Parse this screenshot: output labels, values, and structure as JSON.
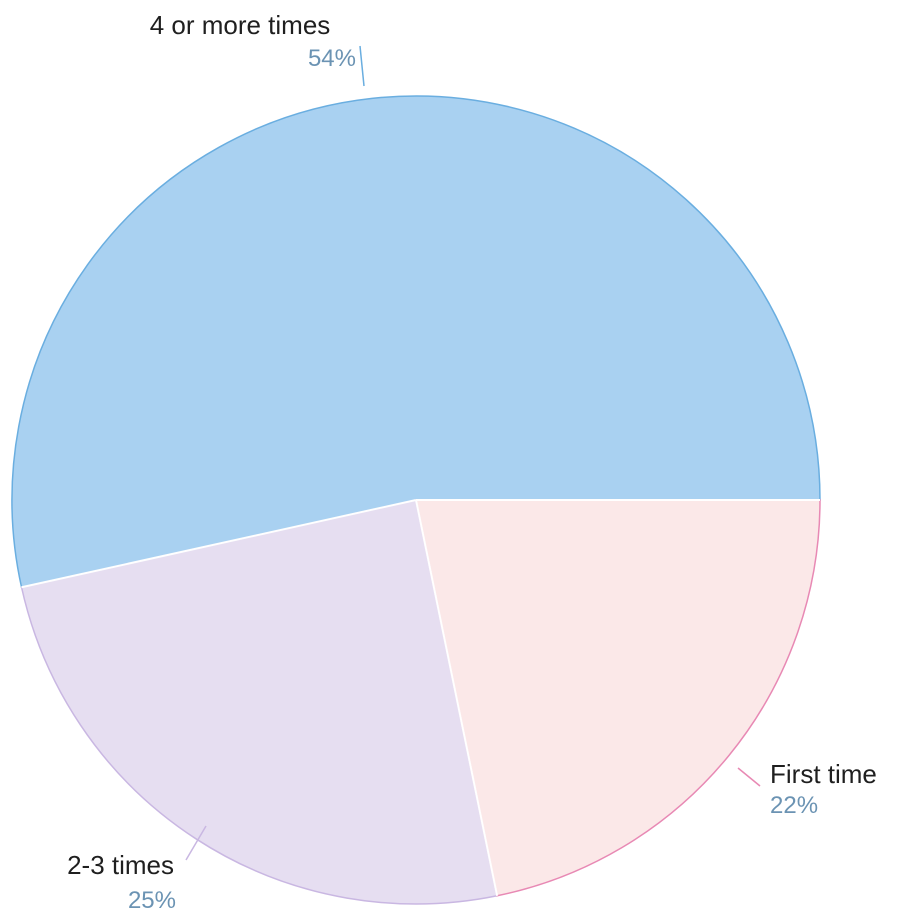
{
  "chart_data": {
    "type": "pie",
    "slices": [
      {
        "label": "4 or more times",
        "value": 54,
        "value_label": "54%",
        "color": "#a9d1f1",
        "edge": "#6aaee0"
      },
      {
        "label": "2-3 times",
        "value": 25,
        "value_label": "25%",
        "color": "#e6def1",
        "edge": "#c9b7e2"
      },
      {
        "label": "First time",
        "value": 22,
        "value_label": "22%",
        "color": "#fbe8e8",
        "edge": "#e889b4"
      }
    ],
    "label_color": "#1f1f1f",
    "percent_color": "#6b93b3"
  }
}
